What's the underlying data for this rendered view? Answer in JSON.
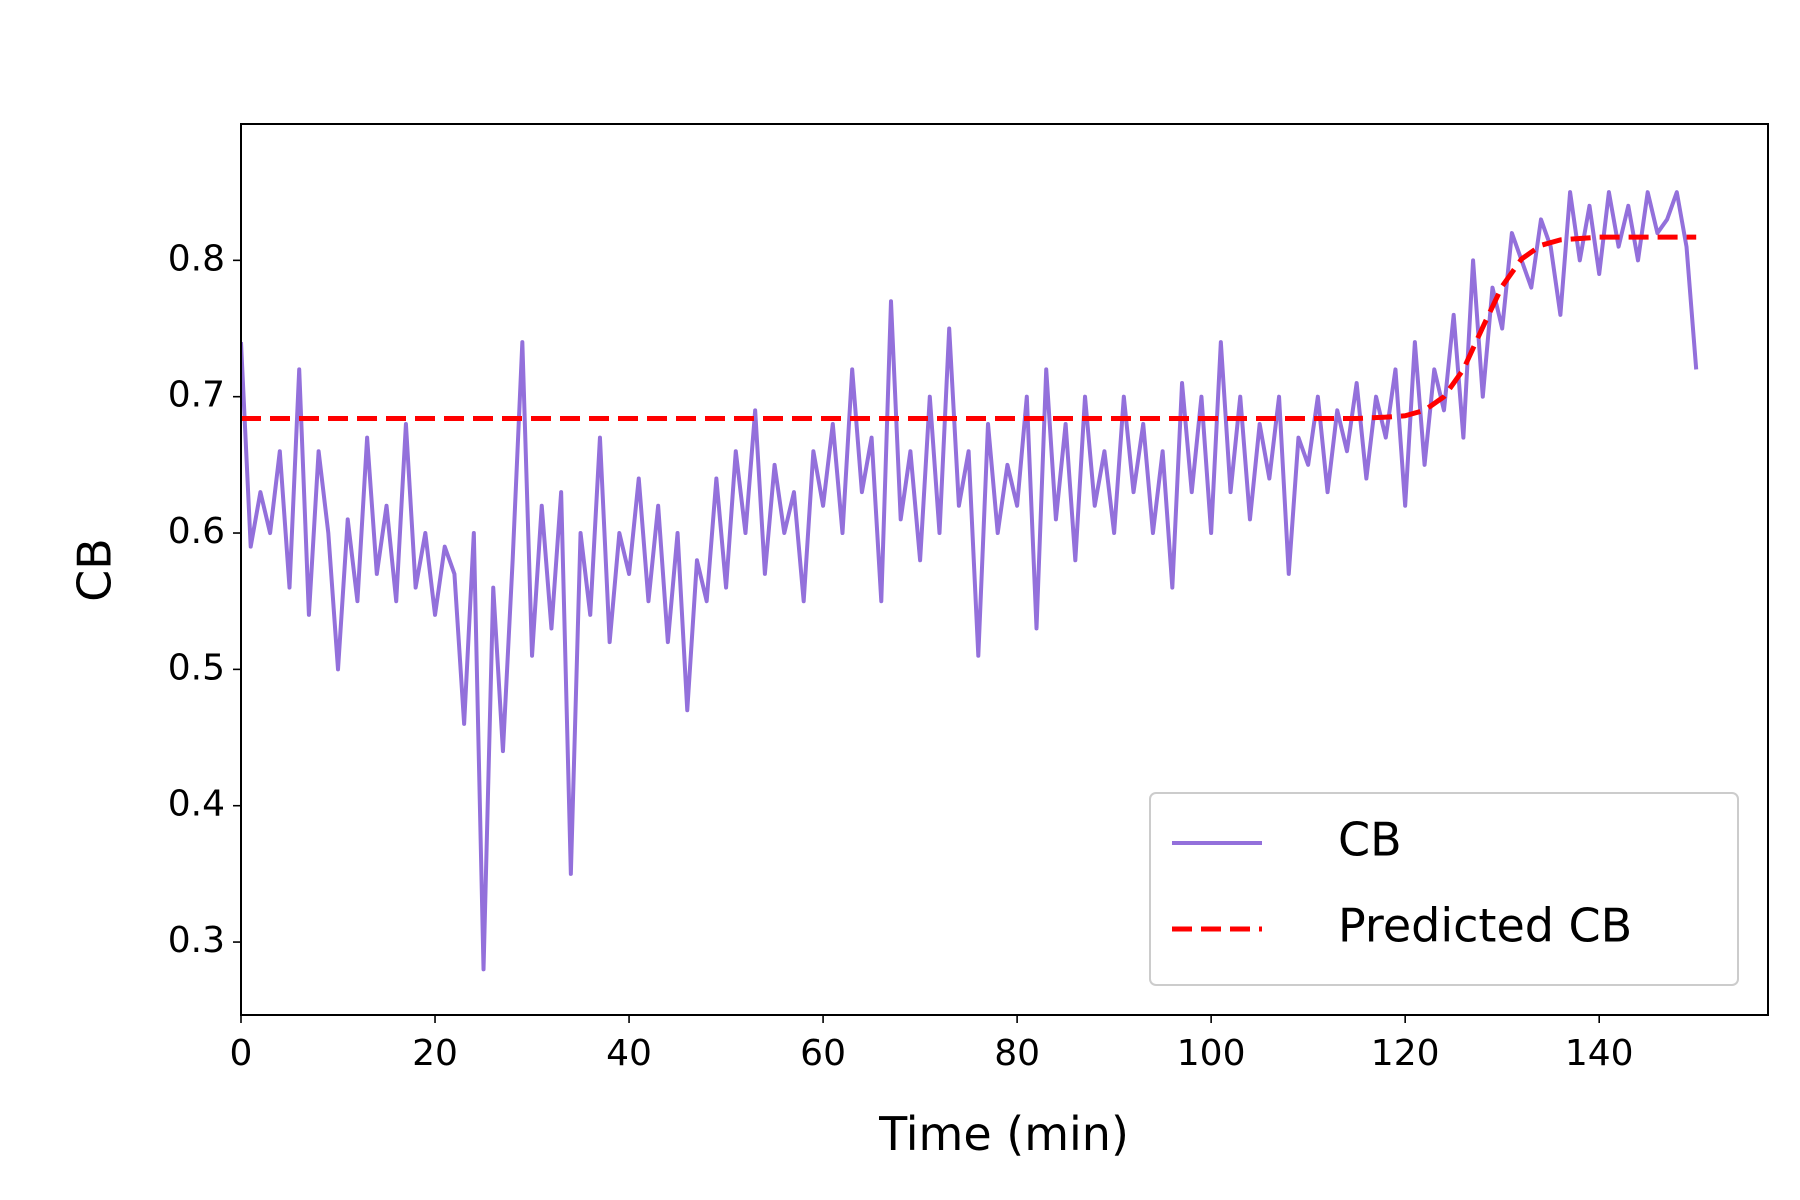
{
  "chart_data": {
    "type": "line",
    "xlabel": "Time (min)",
    "ylabel": "CB",
    "xlim": [
      0,
      157.4
    ],
    "ylim": [
      0.2465,
      0.9
    ],
    "xticks": [
      0,
      20,
      40,
      60,
      80,
      100,
      120,
      140
    ],
    "yticks": [
      0.3,
      0.4,
      0.5,
      0.6,
      0.7,
      0.8
    ],
    "legend": "lower right",
    "series": [
      {
        "name": "CB",
        "color": "#9370db",
        "style": "solid",
        "x": [
          0,
          1,
          2,
          3,
          4,
          5,
          6,
          7,
          8,
          9,
          10,
          11,
          12,
          13,
          14,
          15,
          16,
          17,
          18,
          19,
          20,
          21,
          22,
          23,
          24,
          25,
          26,
          27,
          28,
          29,
          30,
          31,
          32,
          33,
          34,
          35,
          36,
          37,
          38,
          39,
          40,
          41,
          42,
          43,
          44,
          45,
          46,
          47,
          48,
          49,
          50,
          51,
          52,
          53,
          54,
          55,
          56,
          57,
          58,
          59,
          60,
          61,
          62,
          63,
          64,
          65,
          66,
          67,
          68,
          69,
          70,
          71,
          72,
          73,
          74,
          75,
          76,
          77,
          78,
          79,
          80,
          81,
          82,
          83,
          84,
          85,
          86,
          87,
          88,
          89,
          90,
          91,
          92,
          93,
          94,
          95,
          96,
          97,
          98,
          99,
          100,
          101,
          102,
          103,
          104,
          105,
          106,
          107,
          108,
          109,
          110,
          111,
          112,
          113,
          114,
          115,
          116,
          117,
          118,
          119,
          120,
          121,
          122,
          123,
          124,
          125,
          126,
          127,
          128,
          129,
          130,
          131,
          132,
          133,
          134,
          135,
          136,
          137,
          138,
          139,
          140,
          141,
          142,
          143,
          144,
          145,
          146,
          147,
          148,
          149,
          150
        ],
        "values": [
          0.74,
          0.59,
          0.63,
          0.6,
          0.66,
          0.56,
          0.72,
          0.54,
          0.66,
          0.6,
          0.5,
          0.61,
          0.55,
          0.67,
          0.57,
          0.62,
          0.55,
          0.68,
          0.56,
          0.6,
          0.54,
          0.59,
          0.57,
          0.46,
          0.6,
          0.28,
          0.56,
          0.44,
          0.58,
          0.74,
          0.51,
          0.62,
          0.53,
          0.63,
          0.35,
          0.6,
          0.54,
          0.67,
          0.52,
          0.6,
          0.57,
          0.64,
          0.55,
          0.62,
          0.52,
          0.6,
          0.47,
          0.58,
          0.55,
          0.64,
          0.56,
          0.66,
          0.6,
          0.69,
          0.57,
          0.65,
          0.6,
          0.63,
          0.55,
          0.66,
          0.62,
          0.68,
          0.6,
          0.72,
          0.63,
          0.67,
          0.55,
          0.77,
          0.61,
          0.66,
          0.58,
          0.7,
          0.6,
          0.75,
          0.62,
          0.66,
          0.51,
          0.68,
          0.6,
          0.65,
          0.62,
          0.7,
          0.53,
          0.72,
          0.61,
          0.68,
          0.58,
          0.7,
          0.62,
          0.66,
          0.6,
          0.7,
          0.63,
          0.68,
          0.6,
          0.66,
          0.56,
          0.71,
          0.63,
          0.7,
          0.6,
          0.74,
          0.63,
          0.7,
          0.61,
          0.68,
          0.64,
          0.7,
          0.57,
          0.67,
          0.65,
          0.7,
          0.63,
          0.69,
          0.66,
          0.71,
          0.64,
          0.7,
          0.67,
          0.72,
          0.62,
          0.74,
          0.65,
          0.72,
          0.69,
          0.76,
          0.67,
          0.8,
          0.7,
          0.78,
          0.75,
          0.82,
          0.8,
          0.78,
          0.83,
          0.81,
          0.76,
          0.85,
          0.8,
          0.84,
          0.79,
          0.85,
          0.81,
          0.84,
          0.8,
          0.85,
          0.82,
          0.83,
          0.85,
          0.81,
          0.72
        ]
      },
      {
        "name": "Predicted CB",
        "color": "#ff0000",
        "style": "dashed",
        "x": [
          0,
          10,
          20,
          30,
          40,
          50,
          60,
          70,
          80,
          90,
          100,
          110,
          115,
          118,
          120,
          122,
          124,
          126,
          128,
          130,
          132,
          134,
          136,
          140,
          145,
          150
        ],
        "values": [
          0.684,
          0.684,
          0.684,
          0.684,
          0.684,
          0.684,
          0.684,
          0.684,
          0.684,
          0.684,
          0.684,
          0.684,
          0.684,
          0.685,
          0.686,
          0.69,
          0.7,
          0.72,
          0.751,
          0.781,
          0.801,
          0.811,
          0.815,
          0.817,
          0.817,
          0.817
        ]
      }
    ]
  }
}
